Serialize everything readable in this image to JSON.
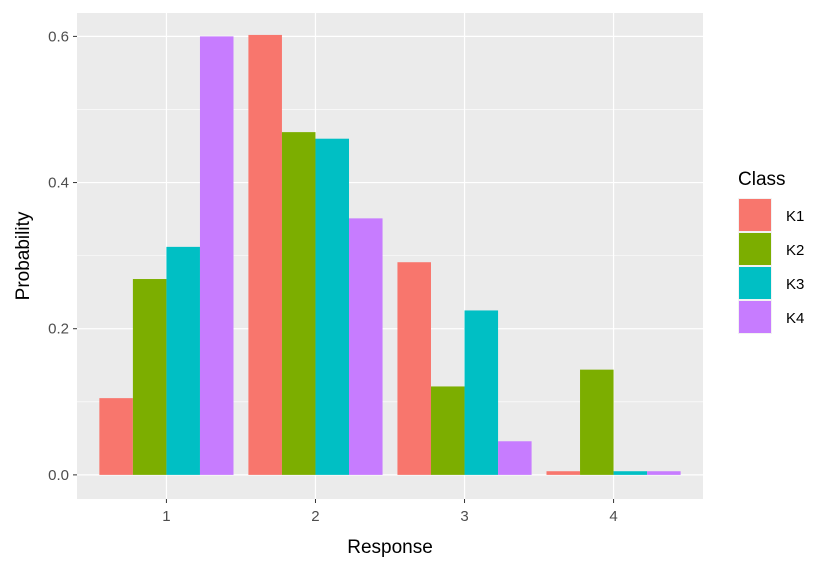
{
  "chart_data": {
    "type": "bar",
    "categories": [
      "1",
      "2",
      "3",
      "4"
    ],
    "series": [
      {
        "name": "K1",
        "color": "#F8766D",
        "values": [
          0.105,
          0.602,
          0.291,
          0.005
        ]
      },
      {
        "name": "K2",
        "color": "#7CAE00",
        "values": [
          0.268,
          0.469,
          0.121,
          0.144
        ]
      },
      {
        "name": "K3",
        "color": "#00BFC4",
        "values": [
          0.312,
          0.46,
          0.225,
          0.005
        ]
      },
      {
        "name": "K4",
        "color": "#C77CFF",
        "values": [
          0.6,
          0.351,
          0.046,
          0.005
        ]
      }
    ],
    "xlabel": "Response",
    "ylabel": "Probability",
    "ylim": [
      -0.033,
      0.632
    ],
    "yticks": [
      0.0,
      0.2,
      0.4,
      0.6
    ],
    "ytick_labels": [
      "0.0",
      "0.2",
      "0.4",
      "0.6"
    ],
    "legend": {
      "title": "Class",
      "position": "right"
    },
    "grid": true,
    "panel_background": "#EBEBEB",
    "grid_color": "#FFFFFF"
  }
}
